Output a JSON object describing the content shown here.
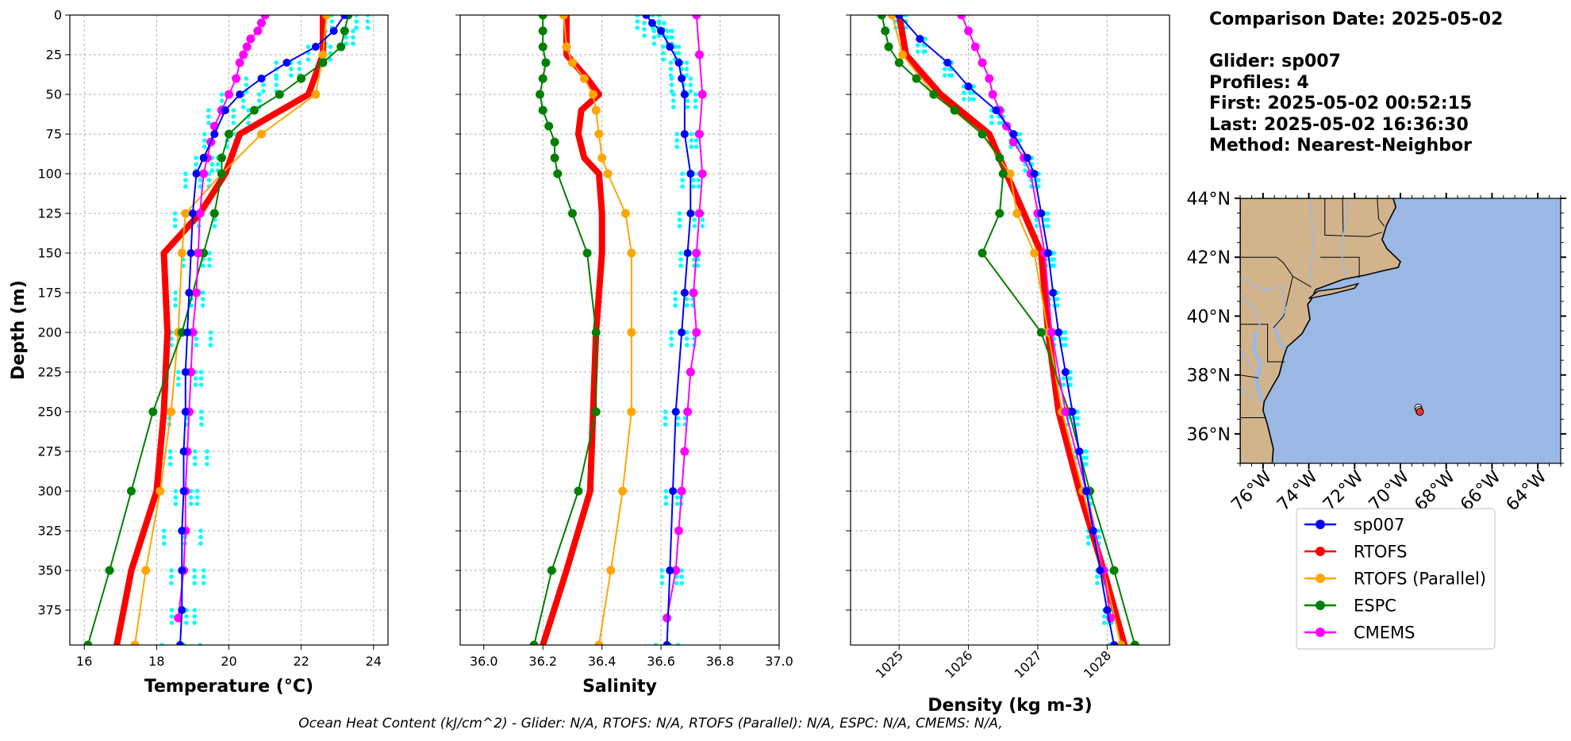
{
  "info": {
    "comparison_date": "Comparison Date: 2025-05-02",
    "glider": "Glider: sp007",
    "profiles": "Profiles: 4",
    "first": "First: 2025-05-02 00:52:15",
    "last": "Last: 2025-05-02 16:36:30",
    "method": "Method: Nearest-Neighbor"
  },
  "footer": "Ocean Heat Content (kJ/cm^2) - Glider: N/A,  RTOFS: N/A,  RTOFS (Parallel): N/A,  ESPC: N/A,  CMEMS: N/A,",
  "colors": {
    "glider": "#0000ff",
    "rtofs": "#ff0000",
    "rtofs_parallel": "#ffa500",
    "espc": "#008000",
    "cmems": "#ff00ff",
    "glider_profiles": "#00ffff",
    "ocean": "#9bb8e4",
    "land": "#d2b48c",
    "grid": "#b0b0b0"
  },
  "legend": {
    "entries": [
      {
        "label": "sp007",
        "color": "#0000ff"
      },
      {
        "label": "RTOFS",
        "color": "#ff0000"
      },
      {
        "label": "RTOFS (Parallel)",
        "color": "#ffa500"
      },
      {
        "label": "ESPC",
        "color": "#008000"
      },
      {
        "label": "CMEMS",
        "color": "#ff00ff"
      }
    ]
  },
  "chart_data": [
    {
      "type": "line",
      "xlabel": "Temperature (°C)",
      "ylabel": "Depth (m)",
      "xlim": [
        15.6,
        24.4
      ],
      "ylim": [
        397,
        0
      ],
      "y_inverted": true,
      "grid": true,
      "xticks": [
        16,
        18,
        20,
        22,
        24
      ],
      "yticks": [
        0,
        25,
        50,
        75,
        100,
        125,
        150,
        175,
        200,
        225,
        250,
        275,
        300,
        325,
        350,
        375
      ],
      "series": [
        {
          "name": "sp007",
          "depth": [
            0,
            10,
            20,
            30,
            40,
            50,
            60,
            75,
            90,
            100,
            125,
            150,
            175,
            200,
            225,
            250,
            275,
            300,
            325,
            350,
            375,
            397
          ],
          "values": [
            23.2,
            22.9,
            22.4,
            21.6,
            20.9,
            20.3,
            19.9,
            19.6,
            19.3,
            19.1,
            19.0,
            18.95,
            18.9,
            18.85,
            18.8,
            18.8,
            18.75,
            18.75,
            18.7,
            18.7,
            18.7,
            18.65
          ]
        },
        {
          "name": "RTOFS",
          "depth": [
            0,
            25,
            50,
            75,
            100,
            125,
            150,
            200,
            250,
            300,
            350,
            397
          ],
          "values": [
            22.6,
            22.6,
            22.2,
            20.3,
            19.9,
            19.2,
            18.2,
            18.3,
            18.2,
            18.0,
            17.3,
            16.9
          ]
        },
        {
          "name": "RTOFS (Parallel)",
          "depth": [
            0,
            25,
            50,
            75,
            100,
            125,
            150,
            200,
            250,
            300,
            350,
            397
          ],
          "values": [
            22.7,
            22.6,
            22.4,
            20.9,
            19.8,
            18.8,
            18.7,
            18.6,
            18.4,
            18.1,
            17.7,
            17.4
          ]
        },
        {
          "name": "ESPC",
          "depth": [
            0,
            10,
            20,
            30,
            40,
            50,
            60,
            75,
            90,
            100,
            125,
            150,
            200,
            250,
            300,
            350,
            397
          ],
          "values": [
            23.3,
            23.2,
            23.1,
            22.6,
            22.0,
            21.4,
            20.7,
            20.0,
            19.8,
            19.8,
            19.6,
            19.3,
            18.7,
            17.9,
            17.3,
            16.7,
            16.1
          ]
        },
        {
          "name": "CMEMS",
          "depth": [
            0,
            5,
            10,
            15,
            20,
            25,
            30,
            40,
            50,
            60,
            70,
            80,
            90,
            100,
            125,
            150,
            175,
            200,
            225,
            250,
            275,
            300,
            325,
            350,
            380
          ],
          "values": [
            21.0,
            20.9,
            20.8,
            20.6,
            20.5,
            20.4,
            20.3,
            20.2,
            20.0,
            19.8,
            19.6,
            19.5,
            19.4,
            19.3,
            19.2,
            19.15,
            19.1,
            19.0,
            18.95,
            18.9,
            18.85,
            18.8,
            18.8,
            18.75,
            18.6
          ]
        }
      ]
    },
    {
      "type": "line",
      "xlabel": "Salinity",
      "ylim": [
        397,
        0
      ],
      "y_inverted": true,
      "xlim": [
        35.92,
        37.0
      ],
      "grid": true,
      "xticks": [
        36.0,
        36.2,
        36.4,
        36.6,
        36.8,
        37.0
      ],
      "series": [
        {
          "name": "sp007",
          "depth": [
            0,
            5,
            10,
            20,
            30,
            40,
            50,
            75,
            100,
            125,
            150,
            175,
            200,
            250,
            300,
            350,
            397
          ],
          "values": [
            36.55,
            36.57,
            36.6,
            36.63,
            36.66,
            36.67,
            36.68,
            36.68,
            36.7,
            36.7,
            36.69,
            36.68,
            36.67,
            36.65,
            36.64,
            36.63,
            36.62
          ]
        },
        {
          "name": "RTOFS",
          "depth": [
            0,
            25,
            40,
            50,
            60,
            75,
            90,
            100,
            125,
            150,
            200,
            250,
            300,
            350,
            397
          ],
          "values": [
            36.28,
            36.28,
            36.35,
            36.39,
            36.33,
            36.32,
            36.34,
            36.39,
            36.4,
            36.4,
            36.38,
            36.37,
            36.36,
            36.28,
            36.2
          ]
        },
        {
          "name": "RTOFS (Parallel)",
          "depth": [
            0,
            20,
            30,
            40,
            50,
            60,
            75,
            90,
            100,
            125,
            150,
            200,
            250,
            300,
            350,
            397
          ],
          "values": [
            36.27,
            36.28,
            36.3,
            36.34,
            36.37,
            36.38,
            36.39,
            36.4,
            36.42,
            36.48,
            36.5,
            36.5,
            36.5,
            36.47,
            36.43,
            36.39
          ]
        },
        {
          "name": "ESPC",
          "depth": [
            0,
            10,
            20,
            30,
            40,
            50,
            60,
            70,
            80,
            90,
            100,
            125,
            150,
            200,
            250,
            300,
            350,
            397
          ],
          "values": [
            36.2,
            36.2,
            36.2,
            36.21,
            36.2,
            36.19,
            36.2,
            36.22,
            36.24,
            36.24,
            36.25,
            36.3,
            36.35,
            36.38,
            36.38,
            36.32,
            36.23,
            36.17
          ]
        },
        {
          "name": "CMEMS",
          "depth": [
            0,
            25,
            50,
            75,
            100,
            125,
            150,
            175,
            200,
            225,
            250,
            275,
            300,
            325,
            350,
            380
          ],
          "values": [
            36.72,
            36.73,
            36.74,
            36.73,
            36.74,
            36.73,
            36.72,
            36.71,
            36.72,
            36.7,
            36.69,
            36.68,
            36.67,
            36.66,
            36.65,
            36.62
          ]
        }
      ]
    },
    {
      "type": "line",
      "xlabel": "Density (kg m-3)",
      "ylim": [
        397,
        0
      ],
      "y_inverted": true,
      "xlim": [
        1024.3,
        1028.9
      ],
      "grid": true,
      "xticks": [
        1025,
        1026,
        1027,
        1028
      ],
      "series": [
        {
          "name": "sp007",
          "depth": [
            0,
            15,
            30,
            45,
            60,
            75,
            90,
            100,
            125,
            150,
            175,
            200,
            225,
            250,
            275,
            300,
            325,
            350,
            375,
            397
          ],
          "values": [
            1025.0,
            1025.3,
            1025.7,
            1026.0,
            1026.4,
            1026.65,
            1026.85,
            1026.95,
            1027.05,
            1027.15,
            1027.22,
            1027.3,
            1027.4,
            1027.5,
            1027.6,
            1027.7,
            1027.8,
            1027.9,
            1028.0,
            1028.1
          ]
        },
        {
          "name": "RTOFS",
          "depth": [
            0,
            25,
            50,
            75,
            100,
            125,
            150,
            200,
            250,
            300,
            350,
            397
          ],
          "values": [
            1025.0,
            1025.1,
            1025.6,
            1026.3,
            1026.55,
            1026.8,
            1027.05,
            1027.15,
            1027.3,
            1027.6,
            1027.95,
            1028.25
          ]
        },
        {
          "name": "RTOFS (Parallel)",
          "depth": [
            0,
            25,
            50,
            75,
            100,
            125,
            150,
            200,
            250,
            300,
            350,
            397
          ],
          "values": [
            1024.9,
            1025.05,
            1025.5,
            1026.2,
            1026.6,
            1026.7,
            1026.95,
            1027.15,
            1027.35,
            1027.65,
            1027.95,
            1028.2
          ]
        },
        {
          "name": "ESPC",
          "depth": [
            0,
            10,
            20,
            30,
            40,
            50,
            60,
            75,
            90,
            100,
            125,
            150,
            200,
            250,
            300,
            350,
            397
          ],
          "values": [
            1024.75,
            1024.8,
            1024.85,
            1025.0,
            1025.25,
            1025.5,
            1025.8,
            1026.2,
            1026.45,
            1026.5,
            1026.45,
            1026.2,
            1027.05,
            1027.45,
            1027.75,
            1028.1,
            1028.4
          ]
        },
        {
          "name": "CMEMS",
          "depth": [
            0,
            10,
            20,
            30,
            40,
            50,
            60,
            70,
            80,
            90,
            100,
            125,
            150,
            200,
            250,
            300,
            350,
            380
          ],
          "values": [
            1025.9,
            1026.0,
            1026.1,
            1026.2,
            1026.3,
            1026.35,
            1026.45,
            1026.55,
            1026.65,
            1026.8,
            1026.9,
            1027.0,
            1027.1,
            1027.2,
            1027.4,
            1027.7,
            1027.95,
            1028.05
          ]
        }
      ]
    }
  ],
  "map": {
    "lon_range": [
      -77,
      -63
    ],
    "lat_range": [
      35,
      44
    ],
    "lat_ticks": [
      "44°N",
      "42°N",
      "40°N",
      "38°N",
      "36°N"
    ],
    "lon_ticks": [
      "76°W",
      "74°W",
      "72°W",
      "70°W",
      "68°W",
      "66°W",
      "64°W"
    ],
    "glider_position": {
      "lon": -69.15,
      "lat": 36.75
    }
  }
}
